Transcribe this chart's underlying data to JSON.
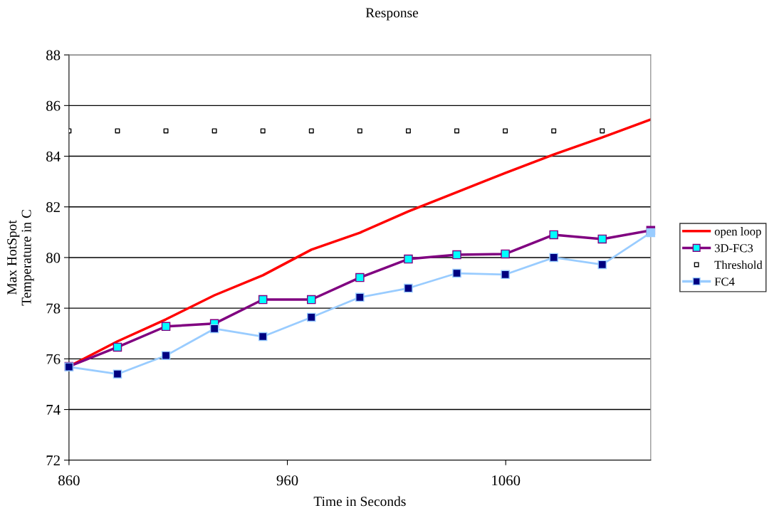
{
  "chart_data": {
    "type": "line",
    "title": "Response",
    "xlabel": "Time in Seconds",
    "ylabel": "Max HotSpot\nTemperature in C",
    "x": [
      860,
      882.2,
      904.4,
      926.6,
      948.8,
      971,
      993.2,
      1015.4,
      1037.6,
      1059.8,
      1082,
      1104.2,
      1126.4
    ],
    "xlim": [
      860,
      1126.4
    ],
    "xticks": [
      860,
      960,
      1060
    ],
    "ylim": [
      72,
      88
    ],
    "yticks": [
      72,
      74,
      76,
      78,
      80,
      82,
      84,
      86,
      88
    ],
    "grid": "y",
    "legend": "right",
    "series": [
      {
        "name": "open loop",
        "color": "#ff0000",
        "marker": "none",
        "values": [
          75.7,
          76.69,
          77.56,
          78.51,
          79.3,
          80.31,
          80.98,
          81.82,
          82.58,
          83.34,
          84.07,
          84.74,
          85.45
        ]
      },
      {
        "name": "3D-FC3",
        "color": "#800080",
        "marker": "square",
        "colors": [
          "#00ffff",
          "#00ffff",
          "#00ffff",
          "#00ffff",
          "#00ffff",
          "#00ffff",
          "#00ffff",
          "#00ffff",
          "#00ffff",
          "#00ffff",
          "#00ffff",
          "#00ffff",
          null
        ],
        "values": [
          75.7,
          76.46,
          77.28,
          77.39,
          78.34,
          78.34,
          79.21,
          79.94,
          80.11,
          80.14,
          80.9,
          80.73,
          81.07
        ]
      },
      {
        "name": "Threshold",
        "type": "scatter",
        "color": "#000000",
        "marker": "square",
        "values": [
          85,
          85,
          85,
          85,
          85,
          85,
          85,
          85,
          85,
          85,
          85,
          85,
          null
        ]
      },
      {
        "name": "FC4",
        "color": "#99ccff",
        "marker": "square",
        "colors": [
          "#000080",
          "#000080",
          "#000080",
          "#000080",
          "#000080",
          "#000080",
          "#000080",
          "#000080",
          "#000080",
          "#000080",
          "#000080",
          "#000080",
          null
        ],
        "values": [
          75.68,
          75.4,
          76.13,
          77.19,
          76.88,
          77.64,
          78.43,
          78.79,
          79.38,
          79.33,
          80.0,
          79.72,
          80.98
        ]
      }
    ]
  }
}
